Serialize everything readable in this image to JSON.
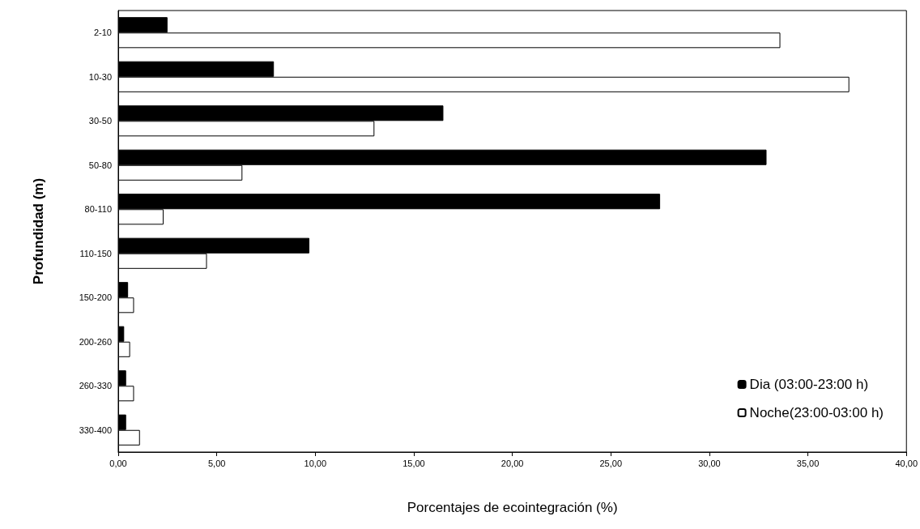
{
  "chart_data": {
    "type": "bar",
    "orientation": "horizontal",
    "xlabel": "Porcentajes de ecointegración (%)",
    "ylabel": "Profundidad (m)",
    "categories": [
      "2-10",
      "10-30",
      "30-50",
      "50-80",
      "80-110",
      "110-150",
      "150-200",
      "200-260",
      "260-330",
      "330-400"
    ],
    "series": [
      {
        "name": "Dia (03:00-23:00 h)",
        "color": "#000000",
        "values": [
          2.5,
          7.9,
          16.5,
          32.9,
          27.5,
          9.7,
          0.5,
          0.3,
          0.4,
          0.4
        ]
      },
      {
        "name": "Noche(23:00-03:00 h)",
        "color": "#ffffff",
        "values": [
          33.6,
          37.1,
          13.0,
          6.3,
          2.3,
          4.5,
          0.8,
          0.6,
          0.8,
          1.1
        ]
      }
    ],
    "xlim": [
      0,
      40
    ],
    "xticks": [
      {
        "value": 0,
        "label": "0,00"
      },
      {
        "value": 5,
        "label": "5,00"
      },
      {
        "value": 10,
        "label": "10,00"
      },
      {
        "value": 15,
        "label": "15,00"
      },
      {
        "value": 20,
        "label": "20,00"
      },
      {
        "value": 25,
        "label": "25,00"
      },
      {
        "value": 30,
        "label": "30,00"
      },
      {
        "value": 35,
        "label": "35,00"
      },
      {
        "value": 40,
        "label": "40,00"
      }
    ],
    "grid": false,
    "legend": "bottom right"
  }
}
